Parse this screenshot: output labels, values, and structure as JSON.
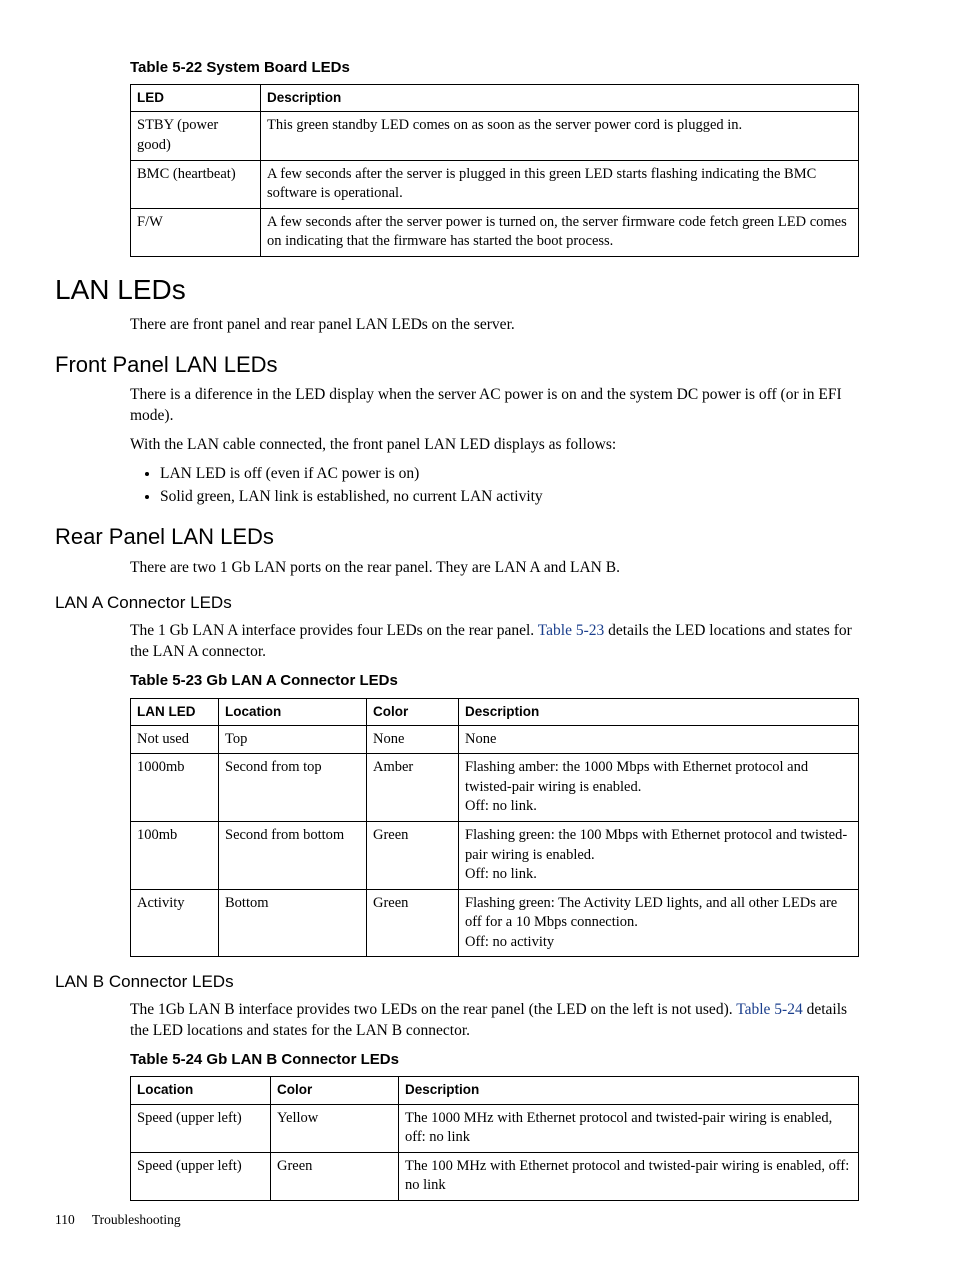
{
  "captions": {
    "t522": "Table 5-22 System Board LEDs",
    "t523": "Table 5-23  Gb LAN A Connector LEDs",
    "t524": "Table 5-24 Gb LAN B Connector LEDs"
  },
  "t522": {
    "headers": {
      "c1": "LED",
      "c2": "Description"
    },
    "rows": [
      {
        "c1": "STBY (power good)",
        "c2": "This green standby LED comes on as soon as the server power cord is plugged in."
      },
      {
        "c1": "BMC (heartbeat)",
        "c2": "A few seconds after the server is plugged in this green LED starts flashing indicating the BMC software is operational."
      },
      {
        "c1": "F/W",
        "c2": "A few seconds after the server power is turned on, the server firmware code fetch green LED comes on indicating that the firmware has started the boot process."
      }
    ]
  },
  "headings": {
    "lan_leds": "LAN LEDs",
    "front": "Front Panel LAN LEDs",
    "rear": "Rear Panel LAN LEDs",
    "lan_a": "LAN A Connector LEDs",
    "lan_b": "LAN B Connector LEDs"
  },
  "paras": {
    "lan_intro": "There are front panel and rear panel LAN LEDs on the server.",
    "front_p1": "There is a diference in the LED display when the server AC power is on and the system DC power is off (or in EFI mode).",
    "front_p2": "With the LAN cable connected, the front panel LAN LED displays as follows:",
    "rear_p1": "There are two 1 Gb LAN ports on the rear panel. They are LAN A and LAN B.",
    "lan_a_pre": "The 1 Gb LAN A interface provides four LEDs on the rear panel. ",
    "lan_a_xref": "Table 5-23",
    "lan_a_post": " details the LED locations and states for the LAN A connector.",
    "lan_b_p1": "The 1Gb LAN B interface provides two LEDs on the rear panel (the LED on the left is not used).",
    "lan_b_xref": "Table 5-24",
    "lan_b_post": " details the LED locations and states for the LAN B connector."
  },
  "bullets": {
    "b1": "LAN LED is off (even if AC power is on)",
    "b2": "Solid green, LAN link is established, no current LAN activity"
  },
  "t523": {
    "headers": {
      "c1": "LAN LED",
      "c2": "Location",
      "c3": "Color",
      "c4": "Description"
    },
    "rows": [
      {
        "c1": "Not used",
        "c2": "Top",
        "c3": "None",
        "d1": "None"
      },
      {
        "c1": "1000mb",
        "c2": "Second from top",
        "c3": "Amber",
        "d1": "Flashing amber: the 1000 Mbps with Ethernet protocol and twisted-pair wiring is enabled.",
        "d2": "Off: no link."
      },
      {
        "c1": "100mb",
        "c2": "Second from bottom",
        "c3": "Green",
        "d1": "Flashing green: the 100 Mbps with Ethernet protocol and twisted-pair wiring is enabled.",
        "d2": "Off: no link."
      },
      {
        "c1": "Activity",
        "c2": "Bottom",
        "c3": "Green",
        "d1": "Flashing green: The Activity LED lights, and all other LEDs are off for a 10 Mbps connection.",
        "d2": "Off: no activity"
      }
    ]
  },
  "t524": {
    "headers": {
      "c1": "Location",
      "c2": "Color",
      "c3": "Description"
    },
    "rows": [
      {
        "c1": "Speed (upper left)",
        "c2": "Yellow",
        "c3": "The 1000 MHz with Ethernet protocol and twisted-pair wiring is enabled, off: no link"
      },
      {
        "c1": "Speed (upper left)",
        "c2": "Green",
        "c3": "The 100 MHz with Ethernet protocol and twisted-pair wiring is enabled, off: no link"
      }
    ]
  },
  "footer": {
    "page": "110",
    "chapter": "Troubleshooting"
  }
}
